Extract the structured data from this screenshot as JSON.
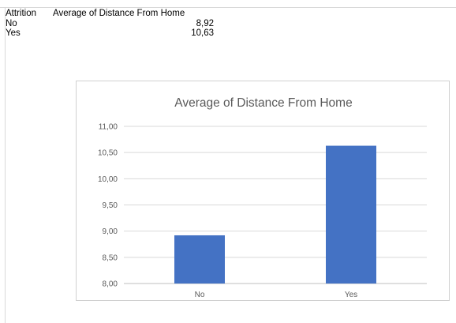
{
  "pivot": {
    "header_row": "Attrition",
    "header_value": "Average of Distance From Home",
    "rows": [
      {
        "label": "No",
        "value": "8,92"
      },
      {
        "label": "Yes",
        "value": "10,63"
      }
    ]
  },
  "chart_data": {
    "type": "bar",
    "title": "Average of Distance From Home",
    "categories": [
      "No",
      "Yes"
    ],
    "values": [
      8.92,
      10.63
    ],
    "ylim": [
      8,
      11
    ],
    "yticks": [
      {
        "value": 8.0,
        "label": "8,00"
      },
      {
        "value": 8.5,
        "label": "8,50"
      },
      {
        "value": 9.0,
        "label": "9,00"
      },
      {
        "value": 9.5,
        "label": "9,50"
      },
      {
        "value": 10.0,
        "label": "10,00"
      },
      {
        "value": 10.5,
        "label": "10,50"
      },
      {
        "value": 11.0,
        "label": "11,00"
      }
    ],
    "bar_color": "#4472c4",
    "grid": true,
    "legend": "none"
  }
}
